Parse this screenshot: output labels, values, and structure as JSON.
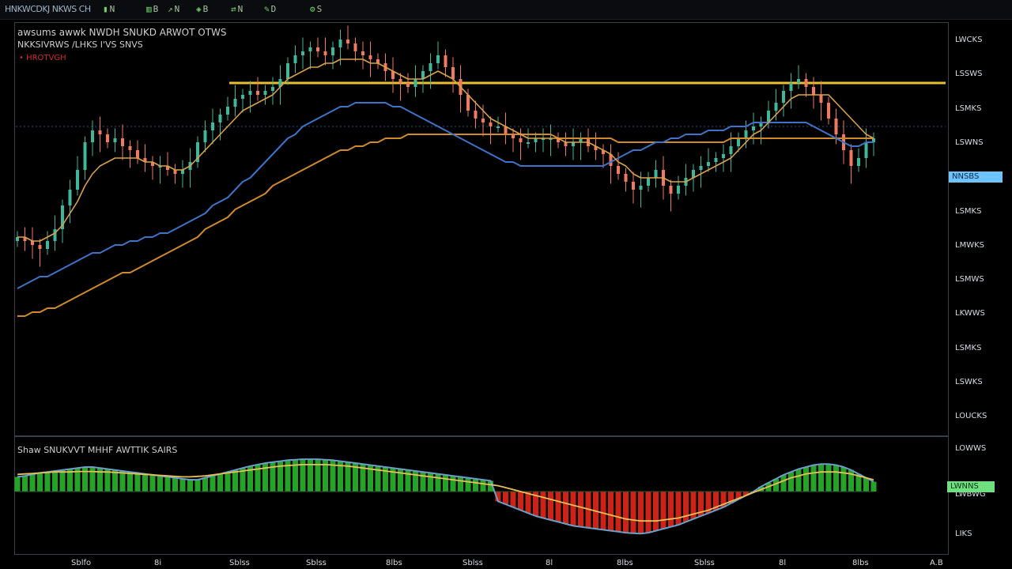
{
  "header": {
    "title": "HNKWCDKJ NKWS CH",
    "tools": [
      {
        "label": "N",
        "icon": "candle-icon"
      },
      {
        "label": "B",
        "icon": "bars-icon"
      },
      {
        "label": "N",
        "icon": "line-icon"
      },
      {
        "label": "B",
        "icon": "indicator-icon"
      },
      {
        "label": "N",
        "icon": "compare-icon"
      },
      {
        "label": "D",
        "icon": "draw-icon"
      },
      {
        "label": "S",
        "icon": "settings-icon"
      }
    ]
  },
  "main_legend": {
    "line1": "awsums awwk  NWDH SNUKD  ARWOT OTWS",
    "line2": "NKKSIVRWS /LHKS  I'VS  SNVS",
    "line3": "• HROTVGH"
  },
  "sub_legend": "Shaw  SNUKVVT  MHHF  AWTTIK  SAIRS",
  "price_axis": [
    "LWCKS",
    "LSSWS",
    "LSMKS",
    "LSWNS",
    "NNSBS",
    "LSMKS",
    "LMWKS",
    "LSMWS",
    "LKWWS",
    "LSMKS",
    "LSWKS",
    "LOUCKS"
  ],
  "current_price_badge": "NNSBS",
  "osc_axis": [
    "LOWWS",
    "LWBWG",
    "LIKS"
  ],
  "osc_badge": "LWNNS",
  "time_axis": [
    "Sblfo",
    "8i",
    "Sblss",
    "Sblss",
    "8lbs",
    "Sblss",
    "8l",
    "8lbs",
    "Sblss",
    "8l",
    "8lbs",
    "A.B"
  ],
  "colors": {
    "up": "#3fb79a",
    "down": "#f07a5f",
    "ma_fast": "#d9a24a",
    "ma_blue": "#3d74c8",
    "ma_slow": "#d08a2c",
    "resistance": "#e8c030",
    "hist_pos": "#28b52a",
    "hist_neg": "#e2261b",
    "signal": "#e8c05a",
    "macd_line": "#6aa0c8",
    "badge_blue": "#6ec3ff",
    "badge_green": "#6fe080"
  },
  "chart_data": [
    {
      "type": "candlestick",
      "y_range": [
        0,
        100
      ],
      "closes": [
        48,
        47,
        46,
        45,
        47,
        50,
        56,
        60,
        65,
        72,
        75,
        74,
        72,
        73,
        71,
        70,
        68,
        67,
        66,
        66,
        65,
        64,
        65,
        67,
        72,
        75,
        77,
        79,
        81,
        83,
        84,
        85,
        84,
        85,
        86,
        88,
        92,
        94,
        95,
        96,
        95,
        94,
        96,
        98,
        97,
        95,
        94,
        93,
        92,
        90,
        88,
        87,
        86,
        88,
        90,
        92,
        94,
        91,
        88,
        84,
        80,
        78,
        77,
        76,
        76,
        74,
        73,
        72,
        72,
        73,
        73,
        73,
        72,
        71,
        72,
        73,
        71,
        70,
        69,
        66,
        64,
        62,
        60,
        61,
        63,
        65,
        61,
        59,
        61,
        63,
        65,
        66,
        67,
        68,
        69,
        71,
        73,
        75,
        76,
        77,
        80,
        82,
        85,
        87,
        88,
        86,
        84,
        82,
        78,
        74,
        70,
        66,
        68,
        72,
        73
      ],
      "ma_fast": [
        48,
        48,
        47,
        47,
        48,
        49,
        51,
        54,
        57,
        61,
        64,
        66,
        67,
        68,
        68,
        68,
        68,
        67,
        67,
        66,
        66,
        65,
        65,
        66,
        68,
        70,
        72,
        74,
        76,
        78,
        80,
        81,
        82,
        83,
        84,
        86,
        88,
        89,
        90,
        91,
        91,
        92,
        92,
        93,
        93,
        93,
        93,
        92,
        92,
        91,
        90,
        89,
        88,
        88,
        88,
        89,
        90,
        89,
        88,
        86,
        84,
        82,
        80,
        78,
        77,
        76,
        75,
        74,
        73,
        73,
        73,
        73,
        73,
        72,
        72,
        72,
        72,
        71,
        70,
        69,
        67,
        66,
        64,
        63,
        63,
        63,
        63,
        62,
        62,
        62,
        63,
        64,
        65,
        66,
        67,
        68,
        70,
        72,
        74,
        75,
        77,
        79,
        81,
        83,
        84,
        84,
        84,
        84,
        84,
        82,
        80,
        78,
        76,
        74,
        73
      ],
      "ma_blue": [
        35,
        36,
        37,
        38,
        38,
        39,
        40,
        41,
        42,
        43,
        44,
        44,
        45,
        46,
        46,
        47,
        47,
        48,
        48,
        49,
        49,
        50,
        51,
        52,
        53,
        54,
        56,
        57,
        58,
        60,
        62,
        63,
        65,
        67,
        69,
        71,
        73,
        74,
        76,
        77,
        78,
        79,
        80,
        81,
        81,
        82,
        82,
        82,
        82,
        82,
        81,
        81,
        80,
        79,
        78,
        77,
        76,
        75,
        74,
        73,
        72,
        71,
        70,
        69,
        68,
        67,
        67,
        66,
        66,
        66,
        66,
        66,
        66,
        66,
        66,
        66,
        66,
        66,
        66,
        67,
        68,
        69,
        70,
        70,
        71,
        72,
        72,
        73,
        73,
        74,
        74,
        74,
        75,
        75,
        75,
        76,
        76,
        76,
        77,
        77,
        77,
        77,
        77,
        77,
        77,
        77,
        76,
        75,
        74,
        73,
        72,
        71,
        71,
        72,
        72
      ],
      "ma_slow": [
        28,
        28,
        29,
        29,
        30,
        30,
        31,
        32,
        33,
        34,
        35,
        36,
        37,
        38,
        39,
        39,
        40,
        41,
        42,
        43,
        44,
        45,
        46,
        47,
        48,
        50,
        51,
        52,
        53,
        55,
        56,
        57,
        58,
        59,
        61,
        62,
        63,
        64,
        65,
        66,
        67,
        68,
        69,
        70,
        70,
        71,
        71,
        72,
        72,
        73,
        73,
        73,
        74,
        74,
        74,
        74,
        74,
        74,
        74,
        74,
        74,
        74,
        74,
        74,
        74,
        74,
        74,
        74,
        74,
        74,
        74,
        74,
        73,
        73,
        73,
        73,
        73,
        73,
        73,
        73,
        72,
        72,
        72,
        72,
        72,
        72,
        72,
        72,
        72,
        72,
        72,
        72,
        72,
        72,
        72,
        73,
        73,
        73,
        73,
        73,
        73,
        73,
        73,
        73,
        73,
        73,
        73,
        73,
        73,
        73,
        73,
        73,
        73,
        73,
        73
      ],
      "resistance_level": 87,
      "horizontal_level": 76
    },
    {
      "type": "macd",
      "y_range": [
        -100,
        100
      ],
      "histogram": [
        30,
        32,
        35,
        38,
        40,
        42,
        44,
        46,
        48,
        50,
        50,
        48,
        46,
        44,
        42,
        40,
        38,
        36,
        34,
        32,
        30,
        28,
        26,
        24,
        24,
        28,
        32,
        36,
        40,
        44,
        48,
        52,
        55,
        58,
        60,
        62,
        64,
        65,
        66,
        66,
        66,
        65,
        64,
        62,
        60,
        58,
        56,
        54,
        52,
        50,
        48,
        46,
        44,
        42,
        40,
        38,
        36,
        34,
        32,
        30,
        28,
        26,
        24,
        22,
        -20,
        -26,
        -32,
        -38,
        -44,
        -50,
        -54,
        -58,
        -62,
        -66,
        -70,
        -72,
        -74,
        -76,
        -78,
        -80,
        -82,
        -84,
        -85,
        -86,
        -84,
        -80,
        -76,
        -72,
        -68,
        -62,
        -56,
        -50,
        -44,
        -38,
        -32,
        -24,
        -16,
        -8,
        0,
        10,
        18,
        26,
        34,
        40,
        46,
        50,
        54,
        56,
        56,
        54,
        50,
        44,
        36,
        28,
        20
      ],
      "signal": [
        35,
        36,
        37,
        38,
        39,
        40,
        40,
        40,
        41,
        41,
        41,
        40,
        40,
        39,
        38,
        37,
        36,
        35,
        34,
        33,
        32,
        31,
        30,
        30,
        31,
        32,
        34,
        36,
        38,
        40,
        42,
        44,
        46,
        48,
        50,
        52,
        53,
        54,
        55,
        55,
        55,
        55,
        54,
        53,
        52,
        50,
        48,
        46,
        44,
        42,
        40,
        38,
        36,
        34,
        32,
        30,
        28,
        26,
        24,
        22,
        20,
        18,
        16,
        14,
        12,
        8,
        4,
        0,
        -4,
        -8,
        -12,
        -16,
        -20,
        -24,
        -28,
        -32,
        -36,
        -40,
        -44,
        -48,
        -52,
        -56,
        -58,
        -60,
        -60,
        -60,
        -58,
        -56,
        -54,
        -50,
        -46,
        -42,
        -38,
        -32,
        -26,
        -20,
        -14,
        -8,
        -2,
        4,
        10,
        16,
        22,
        28,
        32,
        36,
        38,
        40,
        40,
        40,
        38,
        36,
        32,
        28,
        24
      ]
    }
  ]
}
